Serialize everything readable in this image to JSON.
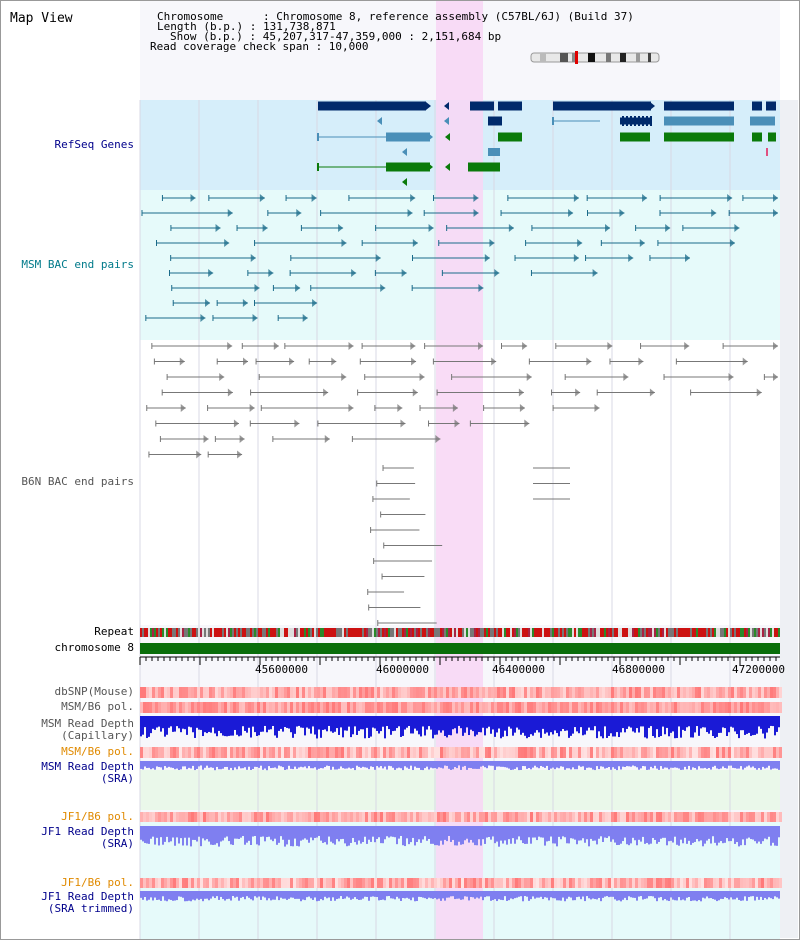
{
  "view_title": "Map View",
  "header": {
    "chromosome_line": "Chromosome      : Chromosome 8, reference assembly (C57BL/6J) (Build 37)",
    "length_line": "Length (b.p.) : 131,738,871",
    "show_line": "Show (b.p.) : 45,207,317-47,359,000 : 2,151,684 bp",
    "coverage_line": "Read coverage check span : 10,000"
  },
  "tracks": {
    "refseq": "RefSeq Genes",
    "msm_bac": "MSM BAC end pairs",
    "b6n_bac": "B6N BAC end pairs",
    "repeat": "Repeat",
    "chrom": "chromosome 8",
    "dbsnp": "dbSNP(Mouse)",
    "msm_b6_pol": "MSM/B6 pol.",
    "msm_depth_cap_1": "MSM Read Depth",
    "msm_depth_cap_2": "(Capillary)",
    "msm_b6_pol_sra": "MSM/B6 pol.",
    "msm_depth_sra_1": "MSM Read Depth",
    "msm_depth_sra_2": "(SRA)",
    "jf1_pol": "JF1/B6 pol.",
    "jf1_depth_1": "JF1 Read Depth",
    "jf1_depth_2": "(SRA)",
    "jf1_pol_trim": "JF1/B6 pol.",
    "jf1_trim_1": "JF1 Read Depth",
    "jf1_trim_2": "(SRA trimmed)"
  },
  "axis_ticks": [
    "45600000",
    "46000000",
    "46400000",
    "46800000",
    "47200000"
  ],
  "colors": {
    "refseq_bg": "#d6eefa",
    "msm_bg": "#e6fafa",
    "highlight": "#f8d6f4",
    "gene_dark": "#002a6b",
    "gene_mid": "#4a8fb8",
    "gene_green": "#0a7a0a",
    "msm_pair": "#1b6b8a",
    "b6n_pair": "#777777",
    "chrom_bar": "#0a6e0a",
    "depth_blue": "#1a1ad6",
    "depth_light": "#7f7ff0",
    "label_blue": "#00008b",
    "label_orange": "#e08a00",
    "label_teal": "#007a8a",
    "label_gray": "#555555"
  }
}
